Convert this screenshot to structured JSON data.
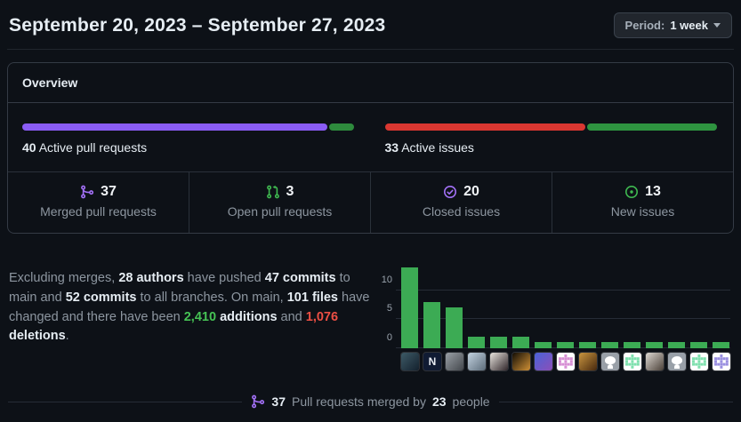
{
  "header": {
    "title": "September 20, 2023 – September 27, 2023",
    "period_label": "Period:",
    "period_value": "1 week"
  },
  "overview": {
    "title": "Overview",
    "pulls": {
      "count": "40",
      "label": "Active pull requests",
      "segments": [
        {
          "name": "merged",
          "color": "#8a5cf5",
          "pct": 92.0
        },
        {
          "name": "open",
          "color": "#2e8b3d",
          "pct": 8.0
        }
      ]
    },
    "issues": {
      "count": "33",
      "label": "Active issues",
      "segments": [
        {
          "name": "closed",
          "color": "#d93731",
          "pct": 60.6
        },
        {
          "name": "new",
          "color": "#2e9440",
          "pct": 39.4
        }
      ]
    },
    "stats": [
      {
        "icon": "git-merge-icon",
        "color": "#a371f7",
        "value": "37",
        "label": "Merged pull requests"
      },
      {
        "icon": "git-pull-request-icon",
        "color": "#3fb950",
        "value": "3",
        "label": "Open pull requests"
      },
      {
        "icon": "issue-closed-icon",
        "color": "#a371f7",
        "value": "20",
        "label": "Closed issues"
      },
      {
        "icon": "issue-opened-icon",
        "color": "#3fb950",
        "value": "13",
        "label": "New issues"
      }
    ]
  },
  "summary": {
    "segments": [
      {
        "text": "Excluding merges, ",
        "style": "muted"
      },
      {
        "text": "28 authors",
        "style": "strong"
      },
      {
        "text": " have pushed ",
        "style": "muted"
      },
      {
        "text": "47 commits",
        "style": "strong"
      },
      {
        "text": " to main and ",
        "style": "muted"
      },
      {
        "text": "52 commits",
        "style": "strong"
      },
      {
        "text": " to all branches. On main, ",
        "style": "muted"
      },
      {
        "text": "101 files",
        "style": "strong"
      },
      {
        "text": " have changed and there have been ",
        "style": "muted"
      },
      {
        "text": "2,410",
        "style": "green"
      },
      {
        "text": " ",
        "style": "muted"
      },
      {
        "text": "additions",
        "style": "strong"
      },
      {
        "text": " and ",
        "style": "muted"
      },
      {
        "text": "1,076",
        "style": "red"
      },
      {
        "text": " ",
        "style": "muted"
      },
      {
        "text": "deletions",
        "style": "strong"
      },
      {
        "text": ".",
        "style": "muted"
      }
    ]
  },
  "chart_data": {
    "type": "bar",
    "title": "",
    "xlabel": "",
    "ylabel": "",
    "values": [
      14,
      8,
      7,
      2,
      2,
      2,
      1,
      1,
      1,
      1,
      1,
      1,
      1,
      1,
      1
    ],
    "yticks": [
      0,
      5,
      10
    ],
    "ylim": [
      0,
      15
    ],
    "bar_color": "#3cab54",
    "grid": true,
    "x_axis": "contributor avatars",
    "avatars": [
      {
        "kind": "photo",
        "c1": "#3d5a66",
        "c2": "#14212e"
      },
      {
        "kind": "letter",
        "char": "N",
        "bg": "#101b33",
        "fg": "#e8ecf2"
      },
      {
        "kind": "photo",
        "c1": "#9aa0a6",
        "c2": "#43474c"
      },
      {
        "kind": "photo",
        "c1": "#c3d2e0",
        "c2": "#5c6c7a"
      },
      {
        "kind": "photo",
        "c1": "#e8e4de",
        "c2": "#30262a"
      },
      {
        "kind": "photo",
        "c1": "#120d05",
        "c2": "#d09136"
      },
      {
        "kind": "photo",
        "c1": "#4a63d8",
        "c2": "#8b4fb8"
      },
      {
        "kind": "identicon",
        "color": "#d78fd4"
      },
      {
        "kind": "photo",
        "c1": "#c9953f",
        "c2": "#47280e"
      },
      {
        "kind": "octocat",
        "bg": "#99a0a8"
      },
      {
        "kind": "identicon",
        "color": "#7fe0ae"
      },
      {
        "kind": "photo",
        "c1": "#ddd8d2",
        "c2": "#4a4038"
      },
      {
        "kind": "octocat",
        "bg": "#99a0a8"
      },
      {
        "kind": "identicon",
        "color": "#7fe0ae"
      },
      {
        "kind": "identicon",
        "color": "#9a8fe0"
      }
    ]
  },
  "merged_summary": {
    "icon": "git-merge-icon",
    "icon_color": "#a371f7",
    "segments": [
      {
        "text": "37",
        "style": "strong"
      },
      {
        "text": " Pull requests merged by ",
        "style": "muted"
      },
      {
        "text": "23",
        "style": "strong"
      },
      {
        "text": " people",
        "style": "muted"
      }
    ]
  }
}
